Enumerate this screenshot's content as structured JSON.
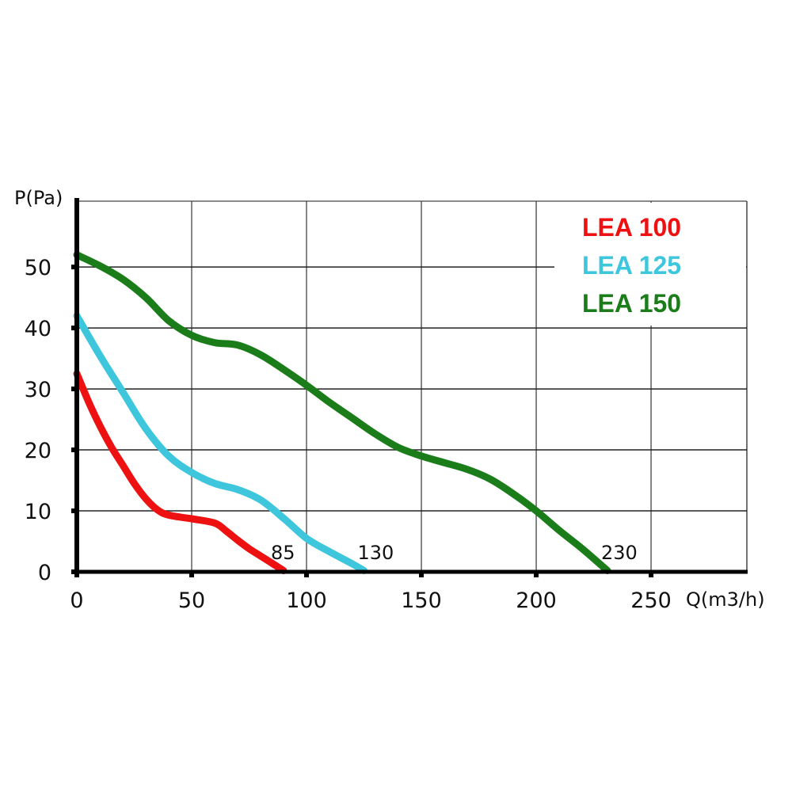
{
  "chart_data": {
    "type": "line",
    "title": "",
    "xlabel": "Q(m3/h)",
    "ylabel": "P(Pa)",
    "xlim": [
      0,
      291.7
    ],
    "ylim": [
      0,
      60.8
    ],
    "grid": true,
    "x_ticks": [
      0,
      50,
      100,
      150,
      200,
      250
    ],
    "x_tick_labels": [
      "0",
      "50",
      "100",
      "150",
      "200",
      "250"
    ],
    "y_ticks": [
      0,
      10,
      20,
      30,
      40,
      50
    ],
    "y_tick_labels": [
      "0",
      "10",
      "20",
      "30",
      "40",
      "50"
    ],
    "legend_position": "top-right",
    "series": [
      {
        "name": "LEA 100",
        "color": "#ee1111",
        "end_label": "85",
        "points": [
          [
            0,
            32.5
          ],
          [
            5,
            28
          ],
          [
            10,
            24
          ],
          [
            15,
            20.5
          ],
          [
            20,
            17.5
          ],
          [
            25,
            14.5
          ],
          [
            30,
            12
          ],
          [
            35,
            10.2
          ],
          [
            40,
            9.3
          ],
          [
            50,
            8.7
          ],
          [
            60,
            8
          ],
          [
            65,
            6.7
          ],
          [
            70,
            5.2
          ],
          [
            75,
            3.8
          ],
          [
            80,
            2.6
          ],
          [
            85,
            1.4
          ],
          [
            90,
            0.2
          ]
        ]
      },
      {
        "name": "LEA 125",
        "color": "#3ec6dc",
        "end_label": "130",
        "points": [
          [
            0,
            42
          ],
          [
            10,
            35.5
          ],
          [
            20,
            29.5
          ],
          [
            30,
            23.5
          ],
          [
            40,
            19
          ],
          [
            50,
            16.3
          ],
          [
            60,
            14.5
          ],
          [
            70,
            13.5
          ],
          [
            80,
            11.8
          ],
          [
            90,
            8.8
          ],
          [
            100,
            5.5
          ],
          [
            110,
            3.3
          ],
          [
            120,
            1.3
          ],
          [
            125,
            0.2
          ]
        ]
      },
      {
        "name": "LEA 150",
        "color": "#1a7d1a",
        "end_label": "230",
        "points": [
          [
            0,
            52
          ],
          [
            10,
            50.2
          ],
          [
            20,
            48
          ],
          [
            30,
            45
          ],
          [
            40,
            41.2
          ],
          [
            50,
            38.8
          ],
          [
            60,
            37.6
          ],
          [
            70,
            37.2
          ],
          [
            80,
            35.6
          ],
          [
            90,
            33.2
          ],
          [
            100,
            30.6
          ],
          [
            110,
            27.8
          ],
          [
            120,
            25.2
          ],
          [
            130,
            22.6
          ],
          [
            140,
            20.4
          ],
          [
            150,
            19
          ],
          [
            160,
            17.9
          ],
          [
            170,
            16.8
          ],
          [
            180,
            15.2
          ],
          [
            190,
            12.8
          ],
          [
            200,
            10
          ],
          [
            210,
            6.8
          ],
          [
            220,
            3.8
          ],
          [
            231,
            0.2
          ]
        ]
      }
    ]
  }
}
